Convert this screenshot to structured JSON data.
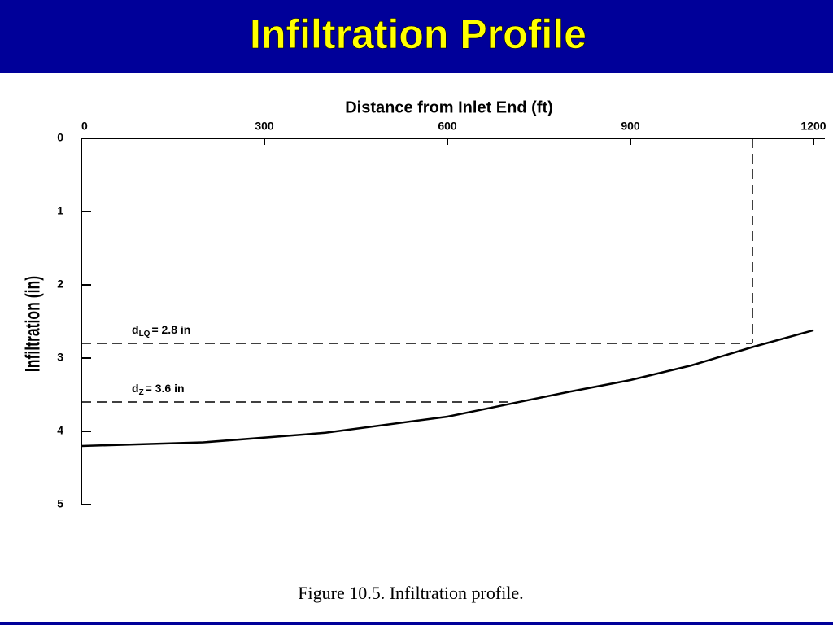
{
  "header": {
    "title": "Infiltration Profile"
  },
  "chart_data": {
    "type": "line",
    "x_label": "Distance from Inlet End (ft)",
    "y_label": "Infiltration (in)",
    "x": [
      0,
      200,
      400,
      600,
      700,
      800,
      900,
      1000,
      1100,
      1200
    ],
    "values": [
      4.2,
      4.15,
      4.02,
      3.8,
      3.63,
      3.46,
      3.3,
      3.1,
      2.85,
      2.62
    ],
    "color": "#000000",
    "xlim": [
      0,
      1200
    ],
    "xticks": [
      0,
      300,
      600,
      900,
      1200
    ],
    "ylim": [
      0,
      5
    ],
    "yticks": [
      0,
      1,
      2,
      3,
      4,
      5
    ],
    "y_inverted": true,
    "x_axis_top": true,
    "annotations": [
      {
        "symbol": "d",
        "subscript": "LQ",
        "label": "= 2.8 in",
        "value": 2.8,
        "x": 1100,
        "vertical": true
      },
      {
        "symbol": "d",
        "subscript": "Z",
        "label": "= 3.6 in",
        "value": 3.6,
        "x": 700,
        "vertical": false
      }
    ]
  },
  "caption": "Figure 10.5.  Infiltration profile."
}
